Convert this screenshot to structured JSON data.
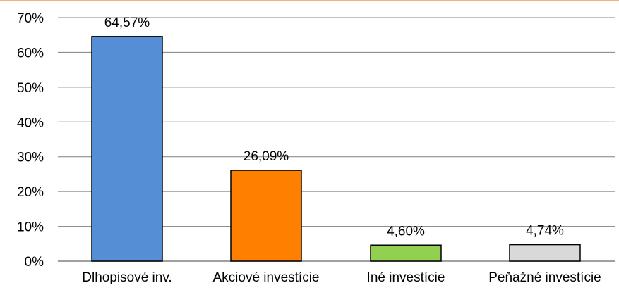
{
  "chart_data": {
    "type": "bar",
    "title": "",
    "xlabel": "",
    "ylabel": "",
    "categories": [
      "Dlhopisové inv.",
      "Akciové investície",
      "Iné investície",
      "Peňažné investície"
    ],
    "values": [
      64.57,
      26.09,
      4.6,
      4.74
    ],
    "data_labels": [
      "64,57%",
      "26,09%",
      "4,60%",
      "4,74%"
    ],
    "ylim": [
      0,
      70
    ],
    "yticks": [
      0,
      10,
      20,
      30,
      40,
      50,
      60,
      70
    ],
    "ytick_labels": [
      "0%",
      "10%",
      "20%",
      "30%",
      "40%",
      "50%",
      "60%",
      "70%"
    ],
    "grid": true,
    "legend": "none",
    "colors": [
      "#558ed5",
      "#ff8000",
      "#92d050",
      "#d9d9d9"
    ],
    "bar_border": "#000000",
    "grid_color": "#808080",
    "top_line_color": "#f4b183"
  }
}
